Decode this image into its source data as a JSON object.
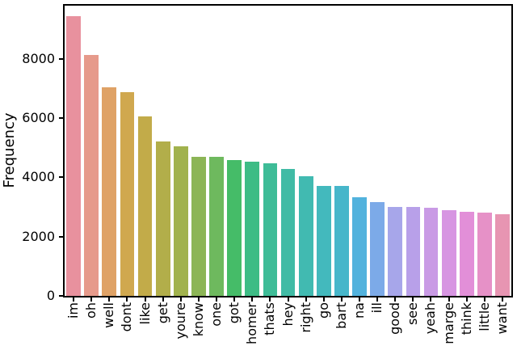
{
  "figure": {
    "background": "#ffffff",
    "spine_color": "#000000",
    "tick_color": "#000000",
    "text_color": "#000000"
  },
  "chart_data": {
    "type": "bar",
    "title": "",
    "xlabel": "",
    "ylabel": "Frequency",
    "ylim": [
      0,
      9800
    ],
    "yticks": [
      0,
      2000,
      4000,
      6000,
      8000
    ],
    "grid": false,
    "legend": "none",
    "x_tick_rotation_deg": 90,
    "categories": [
      "im",
      "oh",
      "well",
      "dont",
      "like",
      "get",
      "youre",
      "know",
      "one",
      "got",
      "homer",
      "thats",
      "hey",
      "right",
      "go",
      "bart",
      "na",
      "ill",
      "good",
      "see",
      "yeah",
      "marge",
      "think",
      "little",
      "want"
    ],
    "values": [
      9450,
      8140,
      7030,
      6880,
      6060,
      5220,
      5050,
      4700,
      4690,
      4590,
      4530,
      4470,
      4290,
      4030,
      3720,
      3720,
      3320,
      3170,
      3010,
      3000,
      2970,
      2900,
      2830,
      2800,
      2770
    ],
    "bar_colors": [
      "#e8919e",
      "#e69a8b",
      "#dfa266",
      "#d0a84f",
      "#c2ab49",
      "#b2ae4a",
      "#a1b24d",
      "#8cb556",
      "#6eb95e",
      "#45bc68",
      "#3dbc85",
      "#3ebc97",
      "#40bba5",
      "#41bab1",
      "#43b9bd",
      "#46b6ca",
      "#52b2dd",
      "#7caae8",
      "#a7a6ea",
      "#b8a0e9",
      "#c99ae5",
      "#d795e2",
      "#e28fd8",
      "#e691c7",
      "#e795b2"
    ]
  }
}
